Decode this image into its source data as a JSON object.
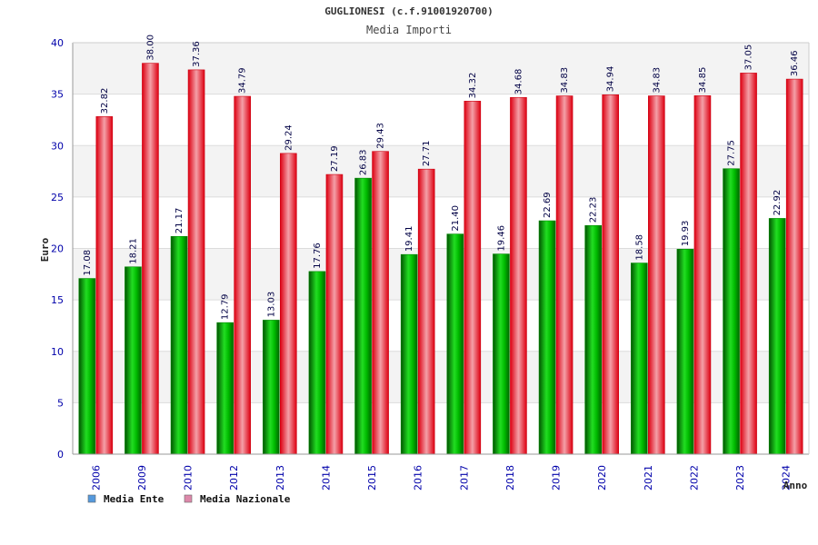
{
  "chart_data": {
    "type": "bar",
    "title": "GUGLIONESI (c.f.91001920700)",
    "subtitle": "Media Importi",
    "xlabel": "Anno",
    "ylabel": "Euro",
    "ylim": [
      0,
      40
    ],
    "yticks": [
      0,
      5,
      10,
      15,
      20,
      25,
      30,
      35,
      40
    ],
    "grid": true,
    "legend_position": "bottom-left",
    "categories": [
      "2006",
      "2009",
      "2010",
      "2012",
      "2013",
      "2014",
      "2015",
      "2016",
      "2017",
      "2018",
      "2019",
      "2020",
      "2021",
      "2022",
      "2023",
      "2024"
    ],
    "series": [
      {
        "name": "Media Ente",
        "color": "#00aa00",
        "legend_color": "#5599dd",
        "values": [
          17.08,
          18.21,
          21.17,
          12.79,
          13.03,
          17.76,
          26.83,
          19.41,
          21.4,
          19.46,
          22.69,
          22.23,
          18.58,
          19.93,
          27.75,
          22.92
        ],
        "labels": [
          "17.08",
          "18.21",
          "21.17",
          "12.79",
          "13.03",
          "17.76",
          "26.83",
          "19.41",
          "21.40",
          "19.46",
          "22.69",
          "22.23",
          "18.58",
          "19.93",
          "27.75",
          "22.92"
        ]
      },
      {
        "name": "Media Nazionale",
        "color": "#ee1122",
        "legend_color": "#dd88aa",
        "values": [
          32.82,
          38.0,
          37.36,
          34.79,
          29.24,
          27.19,
          29.43,
          27.71,
          34.32,
          34.68,
          34.83,
          34.94,
          34.83,
          34.85,
          37.05,
          36.46
        ],
        "labels": [
          "32.82",
          "38.00",
          "37.36",
          "34.79",
          "29.24",
          "27.19",
          "29.43",
          "27.71",
          "34.32",
          "34.68",
          "34.83",
          "34.94",
          "34.83",
          "34.85",
          "37.05",
          "36.46"
        ]
      }
    ]
  }
}
